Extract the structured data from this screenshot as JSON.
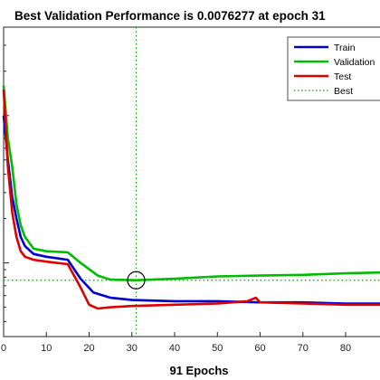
{
  "chart_data": {
    "type": "line",
    "title": "Best Validation Performance is 0.0076277 at epoch 31",
    "xlabel": "91 Epochs",
    "ylabel": "",
    "xlim": [
      0,
      91
    ],
    "ylim_log10": [
      -2.5,
      -0.4
    ],
    "yscale": "log",
    "xticks": [
      "0",
      "10",
      "20",
      "30",
      "40",
      "50",
      "60",
      "70",
      "80"
    ],
    "grid": false,
    "legend_position": "top-right",
    "series": [
      {
        "name": "Train",
        "color": "#0000cc",
        "x": [
          0,
          1,
          2,
          3,
          4,
          5,
          7,
          10,
          15,
          18,
          21,
          25,
          30,
          40,
          50,
          60,
          70,
          80,
          91
        ],
        "y": [
          0.1,
          0.05,
          0.028,
          0.02,
          0.015,
          0.013,
          0.0115,
          0.011,
          0.0105,
          0.0078,
          0.0063,
          0.0058,
          0.0056,
          0.0055,
          0.0055,
          0.0054,
          0.0054,
          0.0053,
          0.0053
        ]
      },
      {
        "name": "Validation",
        "color": "#00bb00",
        "x": [
          0,
          1,
          2,
          3,
          4,
          5,
          7,
          10,
          15,
          18,
          22,
          25,
          31,
          40,
          50,
          60,
          70,
          80,
          88,
          91
        ],
        "y": [
          0.16,
          0.07,
          0.045,
          0.025,
          0.018,
          0.015,
          0.0125,
          0.012,
          0.0118,
          0.01,
          0.0082,
          0.0077,
          0.0076277,
          0.0078,
          0.0081,
          0.0082,
          0.0083,
          0.0085,
          0.0086,
          0.0087
        ]
      },
      {
        "name": "Test",
        "color": "#dd0000",
        "x": [
          0,
          1,
          2,
          3,
          4,
          5,
          7,
          10,
          15,
          18,
          20,
          22,
          25,
          30,
          40,
          50,
          57,
          59,
          60,
          70,
          80,
          91
        ],
        "y": [
          0.15,
          0.045,
          0.022,
          0.015,
          0.012,
          0.011,
          0.0105,
          0.0102,
          0.0098,
          0.0068,
          0.0052,
          0.0049,
          0.005,
          0.0051,
          0.0052,
          0.0053,
          0.0055,
          0.0058,
          0.0054,
          0.0053,
          0.0052,
          0.0052
        ]
      }
    ],
    "best": {
      "name": "Best",
      "epoch": 31,
      "value": 0.0076277,
      "color": "#00aa00"
    }
  }
}
